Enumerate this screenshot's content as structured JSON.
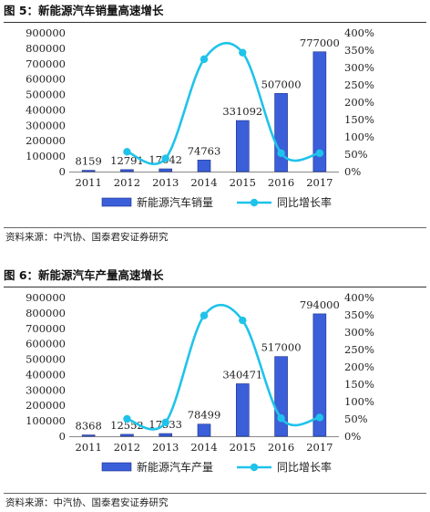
{
  "chart_data": [
    {
      "type": "bar",
      "title": "图 5：新能源汽车销量高速增长",
      "categories": [
        "2011",
        "2012",
        "2013",
        "2014",
        "2015",
        "2016",
        "2017"
      ],
      "series": [
        {
          "name": "新能源汽车销量",
          "type": "bar",
          "axis": "left",
          "values": [
            8159,
            12791,
            17642,
            74763,
            331092,
            507000,
            777000
          ],
          "color": "#3a5fd9"
        },
        {
          "name": "同比增长率",
          "type": "line",
          "axis": "right",
          "values": [
            null,
            0.57,
            0.38,
            3.24,
            3.43,
            0.53,
            0.53
          ],
          "color": "#1fc3ea"
        }
      ],
      "data_labels": [
        "8159",
        "12791",
        "17642",
        "74763",
        "331092",
        "507000",
        "777000"
      ],
      "ylim": [
        0,
        900000
      ],
      "yticks": [
        "0",
        "100000",
        "200000",
        "300000",
        "400000",
        "500000",
        "600000",
        "700000",
        "800000",
        "900000"
      ],
      "y2lim": [
        0,
        4.0
      ],
      "y2ticks": [
        "0%",
        "50%",
        "100%",
        "150%",
        "200%",
        "250%",
        "300%",
        "350%",
        "400%"
      ],
      "legend": "bottom",
      "grid": false,
      "source": "资料来源：中汽协、国泰君安证券研究"
    },
    {
      "type": "bar",
      "title": "图 6：新能源汽车产量高速增长",
      "categories": [
        "2011",
        "2012",
        "2013",
        "2014",
        "2015",
        "2016",
        "2017"
      ],
      "series": [
        {
          "name": "新能源汽车产量",
          "type": "bar",
          "axis": "left",
          "values": [
            8368,
            12552,
            17533,
            78499,
            340471,
            517000,
            794000
          ],
          "color": "#3a5fd9"
        },
        {
          "name": "同比增长率",
          "type": "line",
          "axis": "right",
          "values": [
            null,
            0.5,
            0.4,
            3.48,
            3.34,
            0.52,
            0.54
          ],
          "color": "#1fc3ea"
        }
      ],
      "data_labels": [
        "8368",
        "12552",
        "17533",
        "78499",
        "340471",
        "517000",
        "794000"
      ],
      "ylim": [
        0,
        900000
      ],
      "yticks": [
        "0",
        "100000",
        "200000",
        "300000",
        "400000",
        "500000",
        "600000",
        "700000",
        "800000",
        "900000"
      ],
      "y2lim": [
        0,
        4.0
      ],
      "y2ticks": [
        "0%",
        "50%",
        "100%",
        "150%",
        "200%",
        "250%",
        "300%",
        "350%",
        "400%"
      ],
      "legend": "bottom",
      "grid": false,
      "source": "资料来源：中汽协、国泰君安证券研究"
    }
  ]
}
